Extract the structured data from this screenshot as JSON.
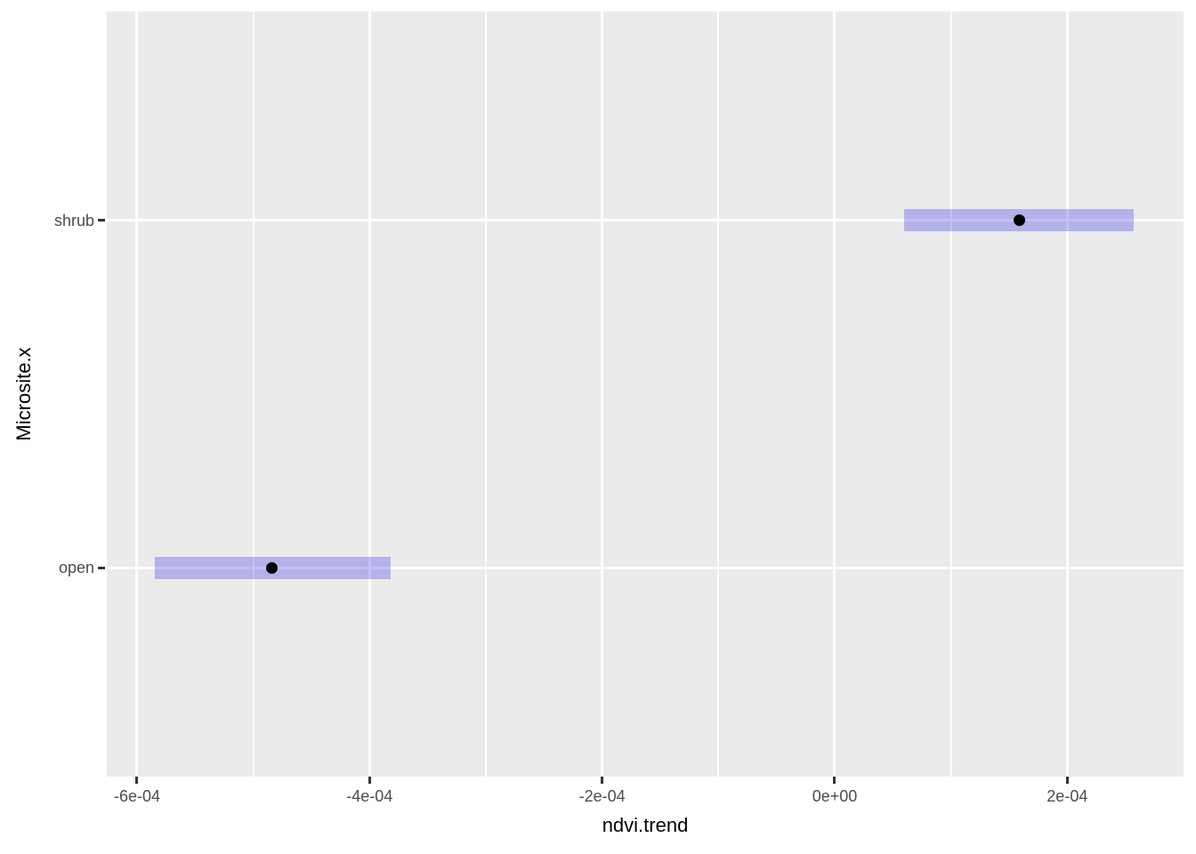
{
  "figure": {
    "background": "#FFFFFF"
  },
  "chart_data": {
    "type": "pointrange",
    "orientation": "horizontal",
    "title": "",
    "xlabel": "ndvi.trend",
    "ylabel": "Microsite.x",
    "categories": [
      "open",
      "shrub"
    ],
    "points": [
      {
        "category": "open",
        "estimate": -0.000484,
        "lower": -0.000585,
        "upper": -0.000382
      },
      {
        "category": "shrub",
        "estimate": 0.000159,
        "lower": 6e-05,
        "upper": 0.000257
      }
    ],
    "x_ticks": [
      {
        "value": -0.0006,
        "label": "-6e-04"
      },
      {
        "value": -0.0004,
        "label": "-4e-04"
      },
      {
        "value": -0.0002,
        "label": "-2e-04"
      },
      {
        "value": 0.0,
        "label": "0e+00"
      },
      {
        "value": 0.0002,
        "label": "2e-04"
      }
    ],
    "x_minor_ticks": [
      -0.0005,
      -0.0003,
      -0.0001,
      0.0001
    ],
    "xlim": [
      -0.000626,
      0.0003
    ],
    "grid": true,
    "legend": false,
    "colors": {
      "panel_background": "#EBEBEB",
      "gridline_major": "#FFFFFF",
      "gridline_minor": "#FFFFFF",
      "bar_fill": "rgba(40,30,230,0.28)",
      "point": "#000000",
      "tick_label": "#4D4D4D",
      "tick_mark": "#333333",
      "axis_title": "#000000"
    }
  }
}
